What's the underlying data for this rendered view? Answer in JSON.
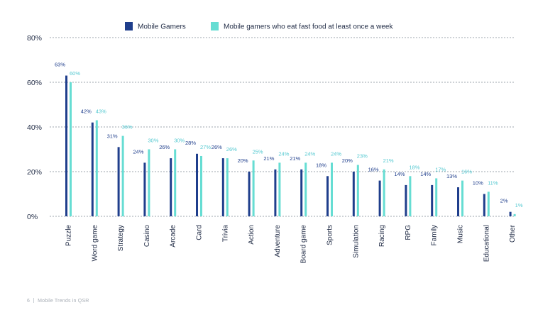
{
  "colors": {
    "series_1": "#1f3e8c",
    "series_2": "#66ddd3",
    "label_1": "#1f3e8c",
    "label_2": "#53c8d0",
    "axis_text": "#1f2a44",
    "grid": "#7c8694"
  },
  "chart_data": {
    "type": "bar",
    "title": "",
    "xlabel": "",
    "ylabel": "",
    "ylim": [
      0,
      80
    ],
    "yticks": [
      0,
      20,
      40,
      60,
      80
    ],
    "ytick_labels": [
      "0%",
      "20%",
      "40%",
      "60%",
      "80%"
    ],
    "grid": true,
    "legend_position": "top-center",
    "categories": [
      "Puzzle",
      "Word game",
      "Strategy",
      "Casino",
      "Arcade",
      "Card",
      "Trivia",
      "Action",
      "Adventure",
      "Board game",
      "Sports",
      "Simulation",
      "Racing",
      "RPG",
      "Family",
      "Music",
      "Educational",
      "Other"
    ],
    "series": [
      {
        "name": "Mobile Gamers",
        "values": [
          63,
          42,
          31,
          24,
          26,
          28,
          26,
          20,
          21,
          21,
          18,
          20,
          16,
          14,
          14,
          13,
          10,
          2
        ],
        "labels": [
          "63%",
          "42%",
          "31%",
          "24%",
          "26%",
          "28%",
          "26%",
          "20%",
          "21%",
          "21%",
          "18%",
          "20%",
          "16%",
          "14%",
          "14%",
          "13%",
          "10%",
          "2%"
        ]
      },
      {
        "name": "Mobile gamers who eat fast food at least once a week",
        "values": [
          60,
          43,
          36,
          30,
          30,
          27,
          26,
          25,
          24,
          24,
          24,
          23,
          21,
          18,
          17,
          16,
          11,
          1
        ],
        "labels": [
          "60%",
          "43%",
          "36%",
          "30%",
          "30%",
          "27%",
          "26%",
          "25%",
          "24%",
          "24%",
          "24%",
          "23%",
          "21%",
          "18%",
          "17%",
          "16%",
          "11%",
          "1%"
        ]
      }
    ]
  },
  "footer": {
    "page_number": "6",
    "text": "Mobile Trends in QSR"
  }
}
